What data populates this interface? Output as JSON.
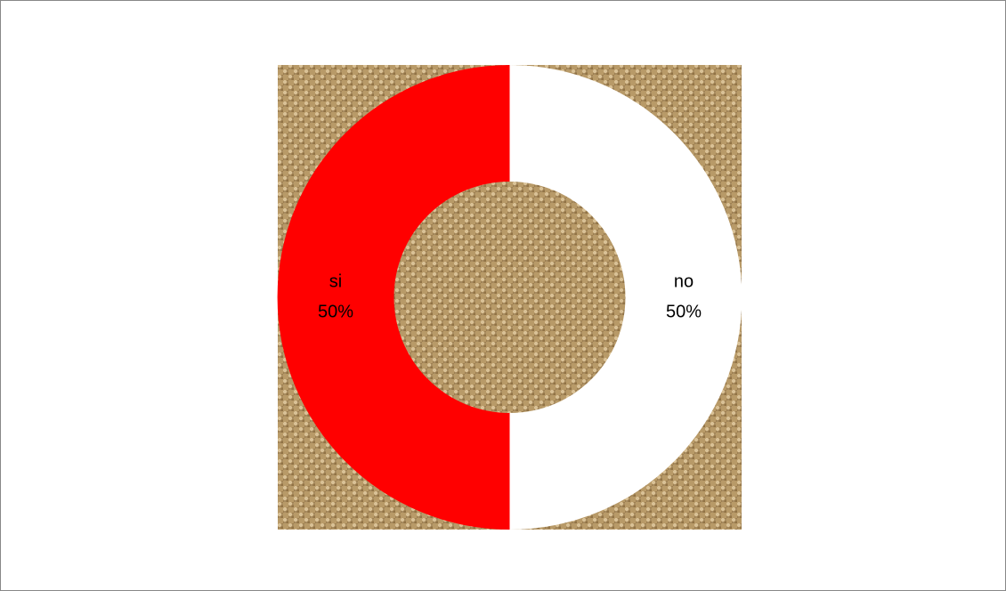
{
  "chart_data": {
    "type": "donut",
    "categories": [
      "no",
      "si"
    ],
    "values": [
      50,
      50
    ],
    "value_labels": [
      "50%",
      "50%"
    ],
    "colors": [
      "#ffffff",
      "#ff0000"
    ]
  }
}
